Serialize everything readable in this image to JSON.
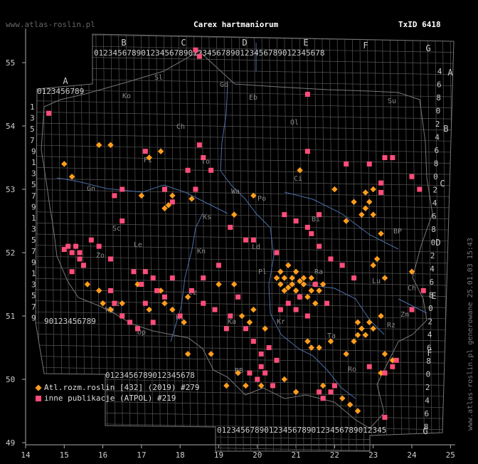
{
  "header": {
    "site": "www.atlas-roslin.pl",
    "title": "Carex hartmaniorum",
    "taxon": "TxID 6418"
  },
  "footer": {
    "generated": "www.atlas-roslin.pl generowane 25.01.03 15:43"
  },
  "legend": [
    {
      "label": "Atl.rozm.roslin [432] (2019) #279",
      "color": "#ff9d1e",
      "shape": "diamond"
    },
    {
      "label": "inne publikacje (ATPOL) #219",
      "color": "#ff4d7a",
      "shape": "square"
    }
  ],
  "axes": {
    "x_ticks": [
      "14",
      "15",
      "16",
      "17",
      "18",
      "19",
      "20",
      "21",
      "22",
      "23",
      "24",
      "25"
    ],
    "y_ticks": [
      "55",
      "54",
      "53",
      "52",
      "51",
      "50",
      "49"
    ]
  },
  "grid": {
    "columns": [
      "A",
      "B",
      "C",
      "D",
      "E",
      "F",
      "G"
    ],
    "rows": [
      "A",
      "B",
      "C",
      "D",
      "E",
      "F",
      "G"
    ],
    "top_digits": "0123456789",
    "col_a_digits": "0123456789",
    "left_digits": [
      "1",
      "3",
      "5",
      "7",
      "9",
      "1",
      "3",
      "5",
      "7",
      "9",
      "1",
      "3",
      "5",
      "7",
      "9",
      "1",
      "3",
      "5",
      "7",
      "9",
      "1",
      "3",
      "5",
      "7",
      "9",
      "1",
      "3",
      "5",
      "7"
    ],
    "right_digits": [
      "4",
      "6",
      "8",
      "0",
      "2",
      "4",
      "6",
      "8",
      "0",
      "2",
      "4",
      "6",
      "8",
      "0",
      "2",
      "4",
      "6",
      "8",
      "0",
      "2",
      "4",
      "6",
      "8",
      "0",
      "2",
      "4",
      "6",
      "8"
    ]
  },
  "regions": [
    "Sl",
    "Gd",
    "Eb",
    "Ol",
    "Su",
    "Ko",
    "Ch",
    "Pi",
    "To",
    "Wa",
    "Ci",
    "Gn",
    "Ks",
    "Bi",
    "Po",
    "Kn",
    "Sc",
    "Le",
    "Zo",
    "Ld",
    "Pl",
    "Lu",
    "Ra",
    "Ch",
    "Kl",
    "Ka",
    "Kr",
    "Rz",
    "Ta",
    "Op",
    "Wb",
    "Cz",
    "Si",
    "BB",
    "Ro",
    "Zm",
    "BP"
  ],
  "points_orange": [
    [
      15.0,
      53.4
    ],
    [
      15.2,
      53.2
    ],
    [
      15.9,
      53.7
    ],
    [
      16.2,
      53.7
    ],
    [
      17.0,
      52.9
    ],
    [
      17.2,
      53.5
    ],
    [
      17.5,
      53.6
    ],
    [
      17.6,
      52.7
    ],
    [
      17.7,
      52.75
    ],
    [
      17.8,
      52.9
    ],
    [
      18.3,
      52.85
    ],
    [
      19.4,
      52.6
    ],
    [
      19.9,
      52.9
    ],
    [
      21.1,
      53.3
    ],
    [
      22.0,
      53.0
    ],
    [
      22.3,
      52.5
    ],
    [
      22.5,
      52.8
    ],
    [
      22.7,
      52.6
    ],
    [
      22.8,
      52.7
    ],
    [
      22.8,
      52.95
    ],
    [
      22.9,
      52.8
    ],
    [
      23.0,
      52.6
    ],
    [
      23.2,
      52.3
    ],
    [
      23.0,
      51.8
    ],
    [
      23.1,
      51.9
    ],
    [
      23.3,
      51.6
    ],
    [
      24.0,
      51.7
    ],
    [
      15.6,
      51.5
    ],
    [
      15.9,
      51.4
    ],
    [
      16.0,
      51.2
    ],
    [
      16.2,
      51.1
    ],
    [
      16.5,
      51.2
    ],
    [
      16.9,
      51.5
    ],
    [
      17.2,
      51.1
    ],
    [
      17.5,
      51.4
    ],
    [
      17.6,
      51.2
    ],
    [
      17.8,
      51.1
    ],
    [
      18.1,
      50.9
    ],
    [
      18.2,
      51.3
    ],
    [
      19.0,
      51.5
    ],
    [
      19.4,
      51.5
    ],
    [
      19.6,
      51.0
    ],
    [
      19.8,
      50.9
    ],
    [
      19.9,
      51.1
    ],
    [
      20.2,
      50.8
    ],
    [
      20.5,
      51.6
    ],
    [
      20.6,
      51.5
    ],
    [
      20.6,
      51.7
    ],
    [
      20.7,
      51.4
    ],
    [
      20.7,
      51.6
    ],
    [
      20.8,
      51.8
    ],
    [
      20.8,
      51.45
    ],
    [
      20.9,
      51.6
    ],
    [
      20.9,
      51.5
    ],
    [
      21.0,
      51.7
    ],
    [
      21.0,
      51.4
    ],
    [
      21.1,
      51.55
    ],
    [
      21.1,
      51.3
    ],
    [
      21.2,
      51.6
    ],
    [
      21.2,
      51.5
    ],
    [
      21.3,
      51.3
    ],
    [
      21.4,
      51.6
    ],
    [
      21.4,
      51.4
    ],
    [
      21.5,
      51.5
    ],
    [
      21.6,
      51.4
    ],
    [
      21.7,
      51.5
    ],
    [
      21.5,
      51.2
    ],
    [
      21.3,
      50.6
    ],
    [
      21.4,
      50.5
    ],
    [
      21.6,
      50.5
    ],
    [
      21.9,
      50.6
    ],
    [
      22.3,
      50.4
    ],
    [
      22.5,
      50.6
    ],
    [
      22.6,
      50.7
    ],
    [
      22.7,
      50.8
    ],
    [
      22.8,
      50.7
    ],
    [
      22.6,
      50.9
    ],
    [
      22.9,
      50.9
    ],
    [
      23.0,
      50.8
    ],
    [
      23.2,
      51.0
    ],
    [
      23.3,
      50.4
    ],
    [
      23.5,
      50.3
    ],
    [
      23.2,
      50.1
    ],
    [
      22.2,
      49.7
    ],
    [
      22.4,
      49.6
    ],
    [
      22.6,
      49.5
    ],
    [
      21.7,
      49.9
    ],
    [
      21.0,
      49.8
    ],
    [
      20.7,
      50.0
    ],
    [
      20.1,
      49.9
    ],
    [
      19.7,
      49.9
    ],
    [
      19.5,
      50.1
    ],
    [
      19.2,
      49.9
    ],
    [
      18.8,
      50.4
    ],
    [
      18.2,
      50.4
    ],
    [
      23.0,
      53.0
    ]
  ],
  "points_pink": [
    [
      14.6,
      54.2
    ],
    [
      18.4,
      55.2
    ],
    [
      18.5,
      55.1
    ],
    [
      21.3,
      54.5
    ],
    [
      17.1,
      53.6
    ],
    [
      18.5,
      53.7
    ],
    [
      18.6,
      53.5
    ],
    [
      18.4,
      53.0
    ],
    [
      17.6,
      53.0
    ],
    [
      17.8,
      52.8
    ],
    [
      18.2,
      53.3
    ],
    [
      18.8,
      53.3
    ],
    [
      16.5,
      53.0
    ],
    [
      16.3,
      52.9
    ],
    [
      16.5,
      52.5
    ],
    [
      21.3,
      53.6
    ],
    [
      22.3,
      53.4
    ],
    [
      22.9,
      53.4
    ],
    [
      23.3,
      53.5
    ],
    [
      23.5,
      53.5
    ],
    [
      23.2,
      53.1
    ],
    [
      24.0,
      53.2
    ],
    [
      24.2,
      53.0
    ],
    [
      23.2,
      52.95
    ],
    [
      15.7,
      52.2
    ],
    [
      15.9,
      52.1
    ],
    [
      15.2,
      52.0
    ],
    [
      15.4,
      51.9
    ],
    [
      15.3,
      52.1
    ],
    [
      15.5,
      51.8
    ],
    [
      15.2,
      51.7
    ],
    [
      15.0,
      52.05
    ],
    [
      15.1,
      52.1
    ],
    [
      15.4,
      52.0
    ],
    [
      16.2,
      51.9
    ],
    [
      16.8,
      51.7
    ],
    [
      17.0,
      51.5
    ],
    [
      17.1,
      51.7
    ],
    [
      17.3,
      51.6
    ],
    [
      17.4,
      51.4
    ],
    [
      17.6,
      51.3
    ],
    [
      17.8,
      51.6
    ],
    [
      16.2,
      51.4
    ],
    [
      16.3,
      51.2
    ],
    [
      16.5,
      51.0
    ],
    [
      16.7,
      50.9
    ],
    [
      16.9,
      50.8
    ],
    [
      17.1,
      51.2
    ],
    [
      17.3,
      50.9
    ],
    [
      18.0,
      51.0
    ],
    [
      18.3,
      51.4
    ],
    [
      18.6,
      51.2
    ],
    [
      18.9,
      51.1
    ],
    [
      19.3,
      51.0
    ],
    [
      19.5,
      51.3
    ],
    [
      19.7,
      50.8
    ],
    [
      19.2,
      50.8
    ],
    [
      18.6,
      51.6
    ],
    [
      19.0,
      51.8
    ],
    [
      19.9,
      52.2
    ],
    [
      20.5,
      52.0
    ],
    [
      21.4,
      52.3
    ],
    [
      21.6,
      52.1
    ],
    [
      21.9,
      51.9
    ],
    [
      22.2,
      51.8
    ],
    [
      22.5,
      51.6
    ],
    [
      21.5,
      51.5
    ],
    [
      21.1,
      51.3
    ],
    [
      21.0,
      51.1
    ],
    [
      21.3,
      51.0
    ],
    [
      20.6,
      51.1
    ],
    [
      20.8,
      51.2
    ],
    [
      21.8,
      51.2
    ],
    [
      19.9,
      50.6
    ],
    [
      20.1,
      50.4
    ],
    [
      20.3,
      50.5
    ],
    [
      20.5,
      50.3
    ],
    [
      20.1,
      50.2
    ],
    [
      19.8,
      50.1
    ],
    [
      20.0,
      50.0
    ],
    [
      20.2,
      50.1
    ],
    [
      20.4,
      49.9
    ],
    [
      21.6,
      49.8
    ],
    [
      21.7,
      49.7
    ],
    [
      21.9,
      49.8
    ],
    [
      22.0,
      49.9
    ],
    [
      23.3,
      49.4
    ],
    [
      22.9,
      50.2
    ],
    [
      23.3,
      50.1
    ],
    [
      23.5,
      50.2
    ],
    [
      23.6,
      50.3
    ],
    [
      24.0,
      51.1
    ],
    [
      24.3,
      51.4
    ],
    [
      20.7,
      52.6
    ],
    [
      21.0,
      52.5
    ],
    [
      21.3,
      52.4
    ],
    [
      21.6,
      52.6
    ],
    [
      19.3,
      52.4
    ],
    [
      19.7,
      52.2
    ]
  ]
}
